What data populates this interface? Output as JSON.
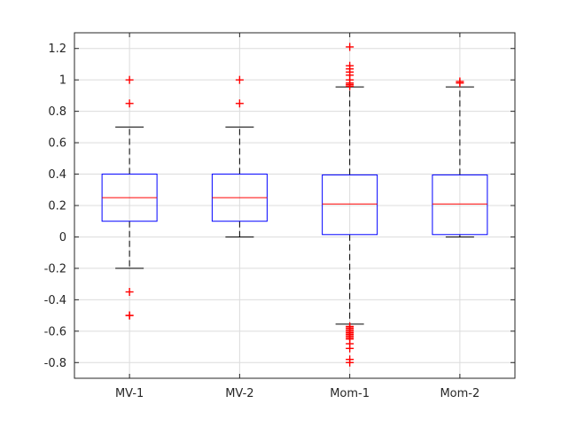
{
  "chart_data": {
    "type": "box",
    "title": "",
    "xlabel": "",
    "ylabel": "",
    "ylim": [
      -0.9,
      1.3
    ],
    "yticks": [
      -0.8,
      -0.6,
      -0.4,
      -0.2,
      0,
      0.2,
      0.4,
      0.6,
      0.8,
      1,
      1.2
    ],
    "ytick_labels": [
      "-0.8",
      "-0.6",
      "-0.4",
      "-0.2",
      "0",
      "0.2",
      "0.4",
      "0.6",
      "0.8",
      "1",
      "1.2"
    ],
    "grid": true,
    "categories": [
      "MV-1",
      "MV-2",
      "Mom-1",
      "Mom-2"
    ],
    "boxes": [
      {
        "whisker_low": -0.2,
        "q1": 0.1,
        "median": 0.25,
        "q3": 0.4,
        "whisker_high": 0.7,
        "outliers": [
          1.0,
          0.85,
          -0.35,
          -0.5,
          -0.5
        ]
      },
      {
        "whisker_low": 0.0,
        "q1": 0.1,
        "median": 0.25,
        "q3": 0.4,
        "whisker_high": 0.7,
        "outliers": [
          1.0,
          0.85
        ]
      },
      {
        "whisker_low": -0.555,
        "q1": 0.015,
        "median": 0.21,
        "q3": 0.395,
        "whisker_high": 0.955,
        "outliers": [
          1.21,
          1.09,
          1.07,
          1.05,
          1.03,
          1.0,
          0.98,
          0.97,
          0.96,
          -0.57,
          -0.58,
          -0.59,
          -0.6,
          -0.61,
          -0.62,
          -0.63,
          -0.64,
          -0.65,
          -0.68,
          -0.71,
          -0.78,
          -0.8
        ]
      },
      {
        "whisker_low": 0.0,
        "q1": 0.015,
        "median": 0.21,
        "q3": 0.395,
        "whisker_high": 0.955,
        "outliers": [
          0.99,
          0.98
        ]
      }
    ],
    "colors": {
      "box": "#0000ff",
      "median": "#ff0000",
      "outlier": "#ff0000",
      "whisker": "#000000",
      "grid": "#dcdcdc",
      "axis": "#262626"
    }
  }
}
